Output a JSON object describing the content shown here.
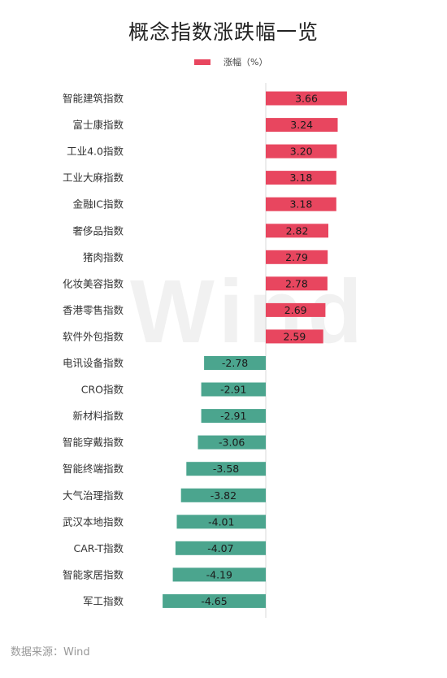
{
  "chart_data": {
    "type": "bar",
    "orientation": "horizontal",
    "title": "概念指数涨跌幅一览",
    "categories": [
      "智能建筑指数",
      "富士康指数",
      "工业4.0指数",
      "工业大麻指数",
      "金融IC指数",
      "奢侈品指数",
      "猪肉指数",
      "化妆美容指数",
      "香港零售指数",
      "软件外包指数",
      "电讯设备指数",
      "CRO指数",
      "新材料指数",
      "智能穿戴指数",
      "智能终端指数",
      "大气治理指数",
      "武汉本地指数",
      "CAR-T指数",
      "智能家居指数",
      "军工指数"
    ],
    "series": [
      {
        "name": "涨幅（%）",
        "values": [
          3.66,
          3.24,
          3.2,
          3.18,
          3.18,
          2.82,
          2.79,
          2.78,
          2.69,
          2.59,
          -2.78,
          -2.91,
          -2.91,
          -3.06,
          -3.58,
          -3.82,
          -4.01,
          -4.07,
          -4.19,
          -4.65
        ],
        "labels": [
          "3.66",
          "3.24",
          "3.20",
          "3.18",
          "3.18",
          "2.82",
          "2.79",
          "2.78",
          "2.69",
          "2.59",
          "-2.78",
          "-2.91",
          "-2.91",
          "-3.06",
          "-3.58",
          "-3.82",
          "-4.01",
          "-4.07",
          "-4.19",
          "-4.65"
        ]
      }
    ],
    "colors": {
      "positive": "#e8465f",
      "negative": "#4ba58e"
    },
    "legend_position": "top",
    "grid": false
  },
  "source": "数据来源：Wind",
  "watermark": "Wind"
}
